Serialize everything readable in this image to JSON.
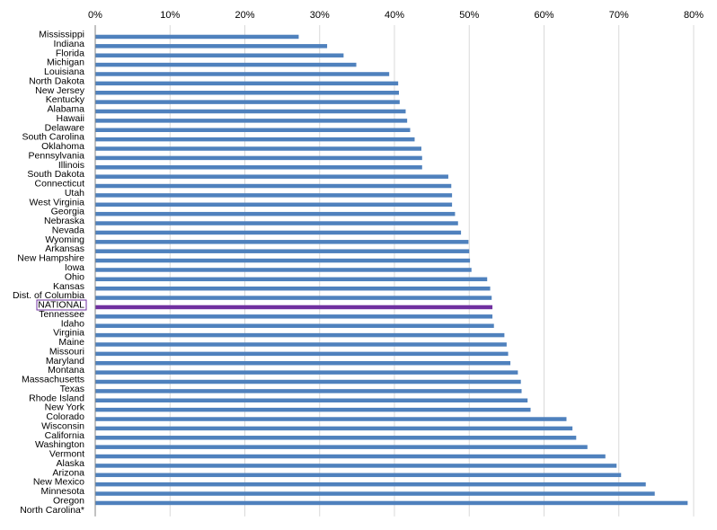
{
  "chart_data": {
    "type": "bar",
    "orientation": "horizontal",
    "xaxis_position": "top",
    "xlim": [
      0,
      80
    ],
    "x_ticks": [
      "0%",
      "10%",
      "20%",
      "30%",
      "40%",
      "50%",
      "60%",
      "70%",
      "80%"
    ],
    "grid": "vertical",
    "legend": "none",
    "colors": {
      "bar": "#4f81bd",
      "highlight": "#7030a0",
      "highlight_box": "#7030a0"
    },
    "highlight": "NATIONAL",
    "categories": [
      "Mississippi",
      "Indiana",
      "Florida",
      "Michigan",
      "Louisiana",
      "North Dakota",
      "New Jersey",
      "Kentucky",
      "Alabama",
      "Hawaii",
      "Delaware",
      "South Carolina",
      "Oklahoma",
      "Pennsylvania",
      "Illinois",
      "South Dakota",
      "Connecticut",
      "Utah",
      "West Virginia",
      "Georgia",
      "Nebraska",
      "Nevada",
      "Wyoming",
      "Arkansas",
      "New Hampshire",
      "Iowa",
      "Ohio",
      "Kansas",
      "Dist. of Columbia",
      "NATIONAL",
      "Tennessee",
      "Idaho",
      "Virginia",
      "Maine",
      "Missouri",
      "Maryland",
      "Montana",
      "Massachusetts",
      "Texas",
      "Rhode Island",
      "New York",
      "Colorado",
      "Wisconsin",
      "California",
      "Washington",
      "Vermont",
      "Alaska",
      "Arizona",
      "New Mexico",
      "Minnesota",
      "Oregon",
      "North Carolina*"
    ],
    "values": [
      27.2,
      31.0,
      33.2,
      34.9,
      39.3,
      40.5,
      40.6,
      40.7,
      41.5,
      41.7,
      42.1,
      42.7,
      43.6,
      43.7,
      43.7,
      47.2,
      47.6,
      47.7,
      47.7,
      48.1,
      48.5,
      48.9,
      49.9,
      50.0,
      50.1,
      50.3,
      52.4,
      52.8,
      53.0,
      53.1,
      53.1,
      53.3,
      54.7,
      55.0,
      55.2,
      55.5,
      56.5,
      56.9,
      57.0,
      57.8,
      58.2,
      63.0,
      63.8,
      64.3,
      65.8,
      68.2,
      69.7,
      70.3,
      73.6,
      74.8,
      79.2,
      0
    ]
  }
}
